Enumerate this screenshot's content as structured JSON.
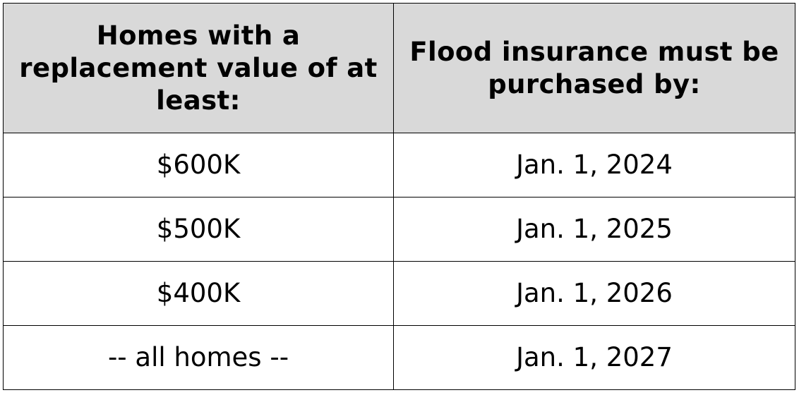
{
  "table": {
    "headers": [
      "Homes with a replacement value of at least:",
      "Flood insurance must be purchased by:"
    ],
    "rows": [
      [
        "$600K",
        "Jan. 1, 2024"
      ],
      [
        "$500K",
        "Jan. 1, 2025"
      ],
      [
        "$400K",
        "Jan. 1, 2026"
      ],
      [
        "-- all homes --",
        "Jan. 1, 2027"
      ]
    ]
  }
}
